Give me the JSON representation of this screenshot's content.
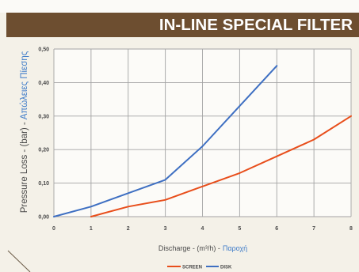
{
  "header": {
    "title": "IN-LINE SPECIAL FILTER"
  },
  "colors": {
    "banner": "#6d4e30",
    "greek_label": "#3f7cc9"
  },
  "chart_data": {
    "type": "line",
    "xlabel": "Discharge - (m³/h) -",
    "xlabel_greek": "Παροχή",
    "ylabel": "Pressure Loss - (bar) -",
    "ylabel_greek": "Απώλειες Πίεσης",
    "xlim": [
      0,
      8
    ],
    "ylim": [
      0,
      0.5
    ],
    "grid": true,
    "legend": "bottom",
    "x_ticks": [
      {
        "value": 0,
        "label": "0"
      },
      {
        "value": 1,
        "label": "1"
      },
      {
        "value": 2,
        "label": "2"
      },
      {
        "value": 3,
        "label": "3"
      },
      {
        "value": 4,
        "label": "4"
      },
      {
        "value": 5,
        "label": "5"
      },
      {
        "value": 6,
        "label": "6"
      },
      {
        "value": 7,
        "label": "7"
      },
      {
        "value": 8,
        "label": "8"
      }
    ],
    "y_ticks": [
      {
        "value": 0.0,
        "label": "0,00"
      },
      {
        "value": 0.1,
        "label": "0,10"
      },
      {
        "value": 0.2,
        "label": "0,20"
      },
      {
        "value": 0.3,
        "label": "0,30"
      },
      {
        "value": 0.4,
        "label": "0,40"
      },
      {
        "value": 0.5,
        "label": "0,50"
      }
    ],
    "series": [
      {
        "name": "SCREEN",
        "color": "#e84e1b",
        "x": [
          1,
          2,
          3,
          4,
          5,
          6,
          7,
          8
        ],
        "y": [
          0.0,
          0.03,
          0.05,
          0.09,
          0.13,
          0.18,
          0.23,
          0.3
        ]
      },
      {
        "name": "DISK",
        "color": "#3e6fc2",
        "x": [
          0,
          1,
          2,
          3,
          4,
          5,
          6
        ],
        "y": [
          0.0,
          0.03,
          0.07,
          0.11,
          0.21,
          0.33,
          0.45
        ]
      }
    ]
  }
}
